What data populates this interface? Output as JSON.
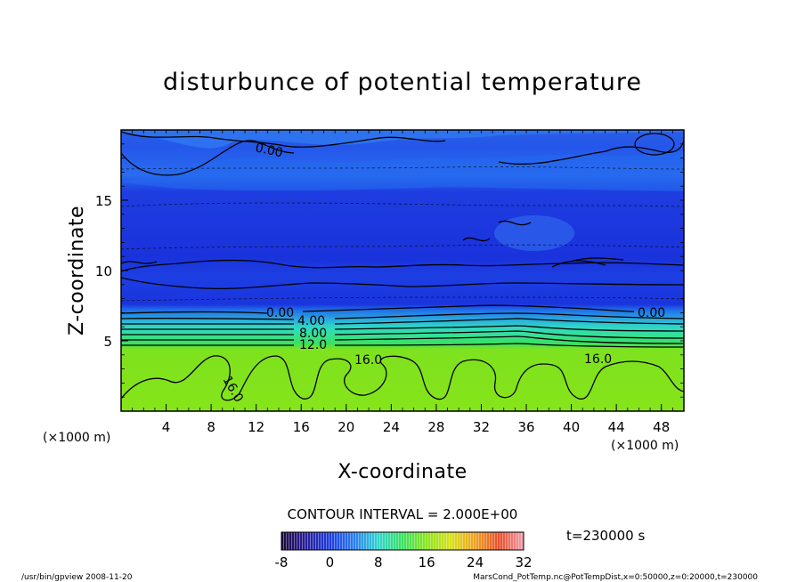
{
  "chart_data": {
    "type": "heatmap",
    "title": "disturbunce of potential temperature",
    "xlabel": "X-coordinate",
    "ylabel": "Z-coordinate",
    "x_unit": "(×1000 m)",
    "y_unit": "(×1000 m)",
    "xlim": [
      0,
      50
    ],
    "ylim": [
      0,
      20
    ],
    "x_ticks": [
      4,
      8,
      12,
      16,
      20,
      24,
      28,
      32,
      36,
      40,
      44,
      48
    ],
    "y_ticks": [
      5,
      10,
      15
    ],
    "contour_interval_text": "CONTOUR INTERVAL = 2.000E+00",
    "contour_labels": [
      "0.00",
      "0.00",
      "0.00",
      "4.00",
      "8.00",
      "12.0",
      "16.0",
      "16.0",
      "16.0"
    ],
    "colorbar": {
      "min": -8,
      "max": 32,
      "ticks": [
        -8,
        0,
        8,
        16,
        24,
        32
      ]
    },
    "time_label": "t=230000 s",
    "field": {
      "description_levels_by_height_km": [
        {
          "z": 0,
          "value": 18
        },
        {
          "z": 4.5,
          "value": 17
        },
        {
          "z": 5.0,
          "value": 14
        },
        {
          "z": 5.5,
          "value": 10
        },
        {
          "z": 6.0,
          "value": 6
        },
        {
          "z": 6.7,
          "value": 2
        },
        {
          "z": 7.2,
          "value": 0
        },
        {
          "z": 9.5,
          "value": -2
        },
        {
          "z": 12.5,
          "value": -4
        },
        {
          "z": 16.5,
          "value": -3
        },
        {
          "z": 20,
          "value": -1
        }
      ]
    }
  },
  "footer": {
    "left": "/usr/bin/gpview   2008-11-20",
    "right": "MarsCond_PotTemp.nc@PotTempDist,x=0:50000,z=0:20000,t=230000"
  }
}
